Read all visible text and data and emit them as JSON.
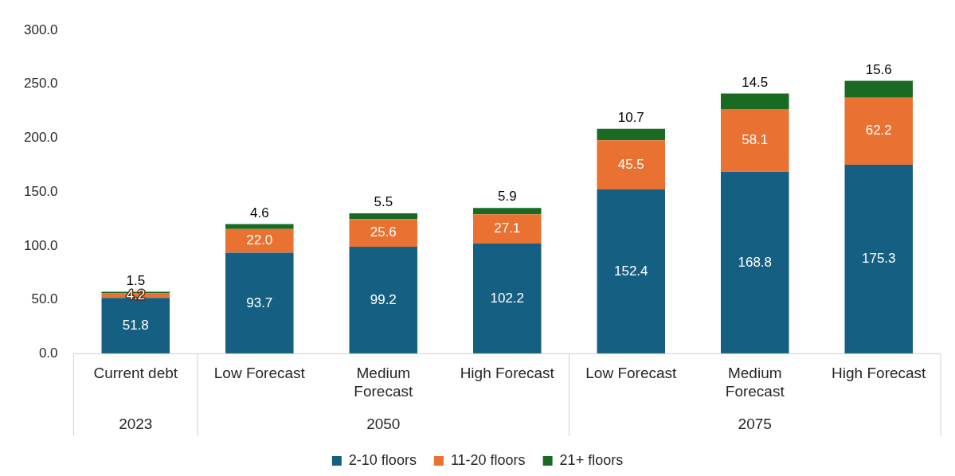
{
  "chart_data": {
    "type": "bar",
    "stacked": true,
    "categories": [
      "Current debt",
      "Low Forecast",
      "Medium Forecast",
      "High Forecast",
      "Low Forecast",
      "Medium Forecast",
      "High Forecast"
    ],
    "series": [
      {
        "name": "2-10 floors",
        "color": "#156082",
        "values": [
          51.8,
          93.7,
          99.2,
          102.2,
          152.4,
          168.8,
          175.3
        ],
        "value_labels": [
          "51.8",
          "93.7",
          "99.2",
          "102.2",
          "152.4",
          "168.8",
          "175.3"
        ]
      },
      {
        "name": "11-20 floors",
        "color": "#e97132",
        "values": [
          4.2,
          22.0,
          25.6,
          27.1,
          45.5,
          58.1,
          62.2
        ],
        "value_labels": [
          "4.2",
          "22.0",
          "25.6",
          "27.1",
          "45.5",
          "58.1",
          "62.2"
        ]
      },
      {
        "name": "21+ floors",
        "color": "#196b24",
        "values": [
          1.5,
          4.6,
          5.5,
          5.9,
          10.7,
          14.5,
          15.6
        ],
        "value_labels": [
          "1.5",
          "4.6",
          "5.5",
          "5.9",
          "10.7",
          "14.5",
          "15.6"
        ]
      }
    ],
    "ylim": [
      0,
      300
    ],
    "yticks": [
      {
        "value": 0,
        "label": "0.0"
      },
      {
        "value": 50,
        "label": "50.0"
      },
      {
        "value": 100,
        "label": "100.0"
      },
      {
        "value": 150,
        "label": "150.0"
      },
      {
        "value": 200,
        "label": "200.0"
      },
      {
        "value": 250,
        "label": "250.0"
      },
      {
        "value": 300,
        "label": "300.0"
      }
    ],
    "grid": false,
    "legend": "bottom",
    "annotations": [
      "2023",
      "2050",
      "2075"
    ]
  }
}
